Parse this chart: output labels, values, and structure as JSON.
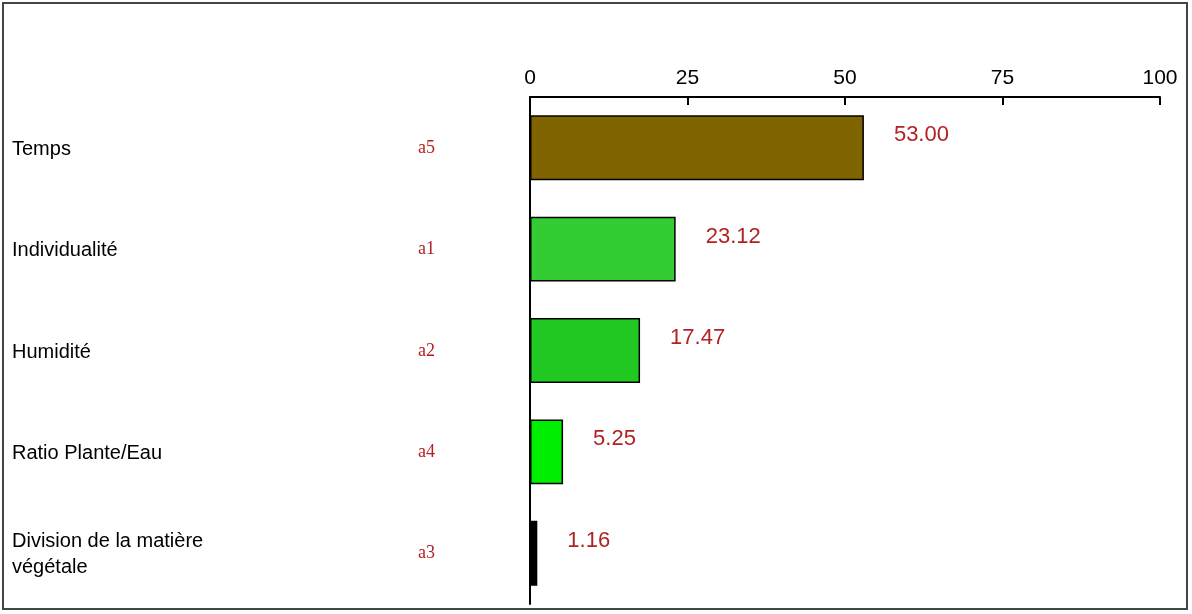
{
  "chart_data": {
    "type": "bar",
    "orientation": "horizontal",
    "categories": [
      "Temps",
      "Individualité",
      "Humidité",
      "Ratio Plante/Eau",
      "Division de la matière végétale"
    ],
    "values": [
      53.0,
      23.12,
      17.47,
      5.25,
      1.16
    ],
    "colors": [
      "#806400",
      "#33cc33",
      "#22c822",
      "#00ee00",
      "#000000"
    ],
    "x2lim": [
      0,
      100
    ],
    "x2ticks": [
      0,
      25,
      50,
      75,
      100
    ],
    "value_labels": [
      "53.00",
      "23.12",
      "17.47",
      "5.25",
      "1.16"
    ],
    "grid": false,
    "annotations": [
      "a5",
      "a1",
      "a2",
      "a4",
      "a3"
    ]
  }
}
